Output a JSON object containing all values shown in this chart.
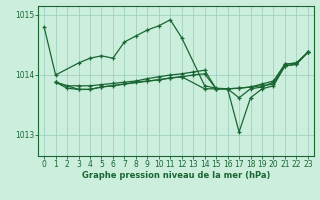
{
  "title": "Graphe pression niveau de la mer (hPa)",
  "bg_color": "#cceedd",
  "grid_color": "#99ccbb",
  "line_color": "#1a6633",
  "xlim": [
    -0.5,
    23.5
  ],
  "ylim": [
    1012.65,
    1015.15
  ],
  "yticks": [
    1013,
    1014,
    1015
  ],
  "xticks": [
    0,
    1,
    2,
    3,
    4,
    5,
    6,
    7,
    8,
    9,
    10,
    11,
    12,
    13,
    14,
    15,
    16,
    17,
    18,
    19,
    20,
    21,
    22,
    23
  ],
  "series": [
    {
      "x": [
        0,
        1,
        3,
        4,
        5,
        6,
        7,
        8,
        9,
        10,
        11,
        12,
        14,
        15,
        16,
        17,
        18,
        19,
        20,
        21,
        22,
        23
      ],
      "y": [
        1014.8,
        1014.0,
        1014.2,
        1014.28,
        1014.32,
        1014.28,
        1014.55,
        1014.65,
        1014.75,
        1014.82,
        1014.92,
        1014.62,
        1013.82,
        1013.78,
        1013.77,
        1013.62,
        1013.77,
        1013.8,
        1013.88,
        1014.18,
        1014.2,
        1014.38
      ]
    },
    {
      "x": [
        1,
        2,
        3,
        4,
        5,
        6,
        7,
        8,
        9,
        10,
        11,
        12,
        13,
        14,
        15,
        16,
        17,
        18,
        19,
        20,
        21,
        22,
        23
      ],
      "y": [
        1013.88,
        1013.78,
        1013.76,
        1013.76,
        1013.8,
        1013.82,
        1013.85,
        1013.88,
        1013.9,
        1013.92,
        1013.95,
        1013.97,
        1014.0,
        1014.02,
        1013.77,
        1013.77,
        1013.78,
        1013.8,
        1013.82,
        1013.85,
        1014.15,
        1014.18,
        1014.38
      ]
    },
    {
      "x": [
        1,
        3,
        4,
        5,
        10,
        11,
        12,
        14,
        15,
        16,
        17,
        18,
        19,
        20,
        21,
        22,
        23
      ],
      "y": [
        1013.88,
        1013.76,
        1013.76,
        1013.8,
        1013.92,
        1013.95,
        1013.97,
        1013.77,
        1013.77,
        1013.77,
        1013.05,
        1013.62,
        1013.77,
        1013.82,
        1014.15,
        1014.18,
        1014.38
      ]
    },
    {
      "x": [
        1,
        2,
        3,
        4,
        5,
        6,
        7,
        8,
        9,
        10,
        11,
        12,
        13,
        14,
        15,
        16,
        17,
        18,
        19,
        20,
        21,
        22,
        23
      ],
      "y": [
        1013.88,
        1013.82,
        1013.82,
        1013.82,
        1013.84,
        1013.86,
        1013.88,
        1013.9,
        1013.94,
        1013.97,
        1014.0,
        1014.02,
        1014.05,
        1014.08,
        1013.77,
        1013.77,
        1013.78,
        1013.8,
        1013.85,
        1013.9,
        1014.18,
        1014.2,
        1014.38
      ]
    }
  ]
}
